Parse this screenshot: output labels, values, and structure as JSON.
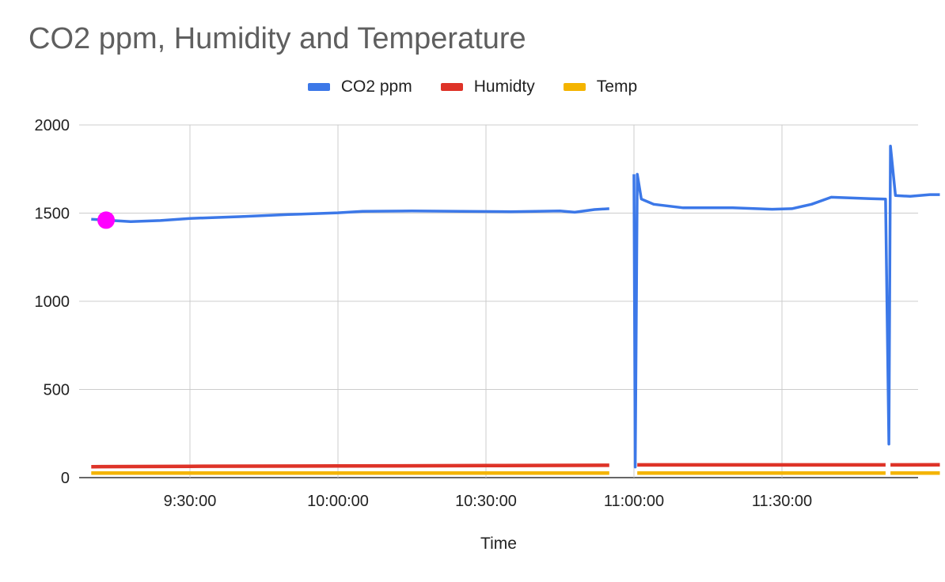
{
  "chart_data": {
    "type": "line",
    "title": "CO2 ppm, Humidity and Temperature",
    "xlabel": "Time",
    "ylabel": "",
    "ylim": [
      0,
      2000
    ],
    "yticks": [
      "0",
      "500",
      "1000",
      "1500",
      "2000"
    ],
    "xticks": [
      "9:30:00",
      "10:00:00",
      "10:30:00",
      "11:00:00",
      "11:30:00"
    ],
    "grid": true,
    "legend_position": "top",
    "highlight_point": {
      "x": "9:13:00",
      "y": 1460,
      "color": "#ff00ff"
    },
    "series": [
      {
        "name": "CO2 ppm",
        "color": "#3c78e8",
        "segments": [
          [
            [
              "9:10:00",
              1465
            ],
            [
              "9:13:00",
              1460
            ],
            [
              "9:18:00",
              1452
            ],
            [
              "9:24:00",
              1458
            ],
            [
              "9:30:00",
              1470
            ],
            [
              "9:40:00",
              1480
            ],
            [
              "9:50:00",
              1492
            ],
            [
              "10:00:00",
              1502
            ],
            [
              "10:05:00",
              1510
            ],
            [
              "10:15:00",
              1512
            ],
            [
              "10:25:00",
              1510
            ],
            [
              "10:35:00",
              1508
            ],
            [
              "10:45:00",
              1512
            ],
            [
              "10:48:00",
              1505
            ],
            [
              "10:52:00",
              1520
            ],
            [
              "10:55:00",
              1525
            ]
          ],
          [
            [
              "11:00:00",
              1720
            ],
            [
              "11:00:15",
              60
            ],
            [
              "11:00:40",
              1720
            ],
            [
              "11:01:30",
              1580
            ],
            [
              "11:04:00",
              1550
            ],
            [
              "11:10:00",
              1530
            ],
            [
              "11:20:00",
              1530
            ],
            [
              "11:28:00",
              1522
            ],
            [
              "11:32:00",
              1525
            ],
            [
              "11:36:00",
              1550
            ],
            [
              "11:40:00",
              1590
            ],
            [
              "11:48:00",
              1582
            ],
            [
              "11:51:00",
              1580
            ],
            [
              "11:51:40",
              190
            ],
            [
              "11:52:00",
              1880
            ],
            [
              "11:53:00",
              1600
            ],
            [
              "11:56:00",
              1595
            ],
            [
              "12:00:00",
              1605
            ],
            [
              "12:02:00",
              1605
            ]
          ]
        ]
      },
      {
        "name": "Humidty",
        "color": "#de3328",
        "segments": [
          [
            [
              "9:10:00",
              62
            ],
            [
              "9:30:00",
              64
            ],
            [
              "10:00:00",
              66
            ],
            [
              "10:30:00",
              68
            ],
            [
              "10:55:00",
              70
            ]
          ],
          [
            [
              "11:00:40",
              72
            ],
            [
              "11:30:00",
              72
            ],
            [
              "11:51:00",
              72
            ]
          ],
          [
            [
              "11:52:00",
              72
            ],
            [
              "12:02:00",
              73
            ]
          ]
        ]
      },
      {
        "name": "Temp",
        "color": "#f4b400",
        "segments": [
          [
            [
              "9:10:00",
              26
            ],
            [
              "9:30:00",
              26
            ],
            [
              "10:00:00",
              26
            ],
            [
              "10:30:00",
              26
            ],
            [
              "10:55:00",
              26
            ]
          ],
          [
            [
              "11:00:40",
              26
            ],
            [
              "11:30:00",
              26
            ],
            [
              "11:51:00",
              26
            ]
          ],
          [
            [
              "11:52:00",
              26
            ],
            [
              "12:02:00",
              26
            ]
          ]
        ]
      }
    ]
  }
}
